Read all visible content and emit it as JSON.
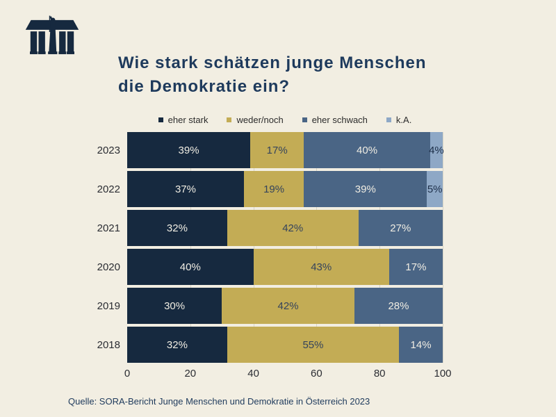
{
  "page": {
    "background": "#F2EEE2"
  },
  "logo": {
    "name": "parliament-logo",
    "color": "#16293F"
  },
  "title": {
    "line1": "Wie stark schätzen junge Menschen",
    "line2": "die Demokratie ein?",
    "color": "#1E3A5C"
  },
  "legend": [
    {
      "label": "eher stark",
      "color": "#16293F"
    },
    {
      "label": "weder/noch",
      "color": "#C3AC55"
    },
    {
      "label": "eher schwach",
      "color": "#4A6585"
    },
    {
      "label": "k.A.",
      "color": "#8EA8C6"
    }
  ],
  "chart_data": {
    "type": "bar",
    "orientation": "horizontal",
    "stacked": true,
    "categories": [
      "2023",
      "2022",
      "2021",
      "2020",
      "2019",
      "2018"
    ],
    "series": [
      {
        "name": "eher stark",
        "color": "#16293F",
        "label_color": "#F0EDE3",
        "values": [
          39,
          37,
          32,
          40,
          30,
          32
        ]
      },
      {
        "name": "weder/noch",
        "color": "#C3AC55",
        "label_color": "#34435C",
        "values": [
          17,
          19,
          42,
          43,
          42,
          55
        ]
      },
      {
        "name": "eher schwach",
        "color": "#4A6585",
        "label_color": "#F0EDE3",
        "values": [
          40,
          39,
          27,
          17,
          28,
          14
        ]
      },
      {
        "name": "k.A.",
        "color": "#8EA8C6",
        "label_color": "#1D2F49",
        "values": [
          4,
          5,
          0,
          0,
          0,
          0
        ]
      }
    ],
    "value_suffix": "%",
    "xlim": [
      0,
      100
    ],
    "xticks": [
      0,
      20,
      40,
      60,
      80,
      100
    ],
    "grid": true,
    "legend_position": "top"
  },
  "source": "Quelle: SORA-Bericht Junge Menschen und Demokratie in Österreich 2023"
}
